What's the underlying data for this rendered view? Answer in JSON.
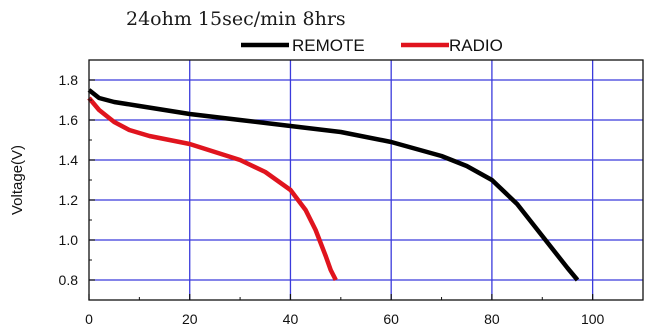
{
  "chart_data": {
    "type": "line",
    "title": "24ohm 15sec/min 8hrs",
    "xlabel": "",
    "ylabel": "Voltage(V)",
    "xlim": [
      0,
      110
    ],
    "ylim": [
      0.7,
      1.9
    ],
    "xticks": [
      0,
      20,
      40,
      60,
      80,
      100
    ],
    "yticks": [
      0.8,
      1.0,
      1.2,
      1.4,
      1.6,
      1.8
    ],
    "xtick_labels": [
      "0",
      "20",
      "40",
      "60",
      "80",
      "100"
    ],
    "ytick_labels": [
      "0.8",
      "1.0",
      "1.2",
      "1.4",
      "1.6",
      "1.8"
    ],
    "grid": true,
    "grid_color": "#3b3bdc",
    "legend_position": "top",
    "series": [
      {
        "name": "REMOTE",
        "color": "#000000",
        "x": [
          0,
          2,
          5,
          10,
          20,
          30,
          40,
          50,
          60,
          70,
          75,
          80,
          85,
          90,
          95,
          97
        ],
        "y": [
          1.75,
          1.71,
          1.69,
          1.67,
          1.63,
          1.6,
          1.57,
          1.54,
          1.49,
          1.42,
          1.37,
          1.3,
          1.18,
          1.02,
          0.86,
          0.8
        ]
      },
      {
        "name": "RADIO",
        "color": "#e0141e",
        "x": [
          0,
          2,
          5,
          8,
          12,
          20,
          30,
          35,
          40,
          43,
          45,
          47,
          48,
          49
        ],
        "y": [
          1.71,
          1.65,
          1.59,
          1.55,
          1.52,
          1.48,
          1.4,
          1.34,
          1.25,
          1.15,
          1.05,
          0.92,
          0.85,
          0.8
        ]
      }
    ]
  }
}
